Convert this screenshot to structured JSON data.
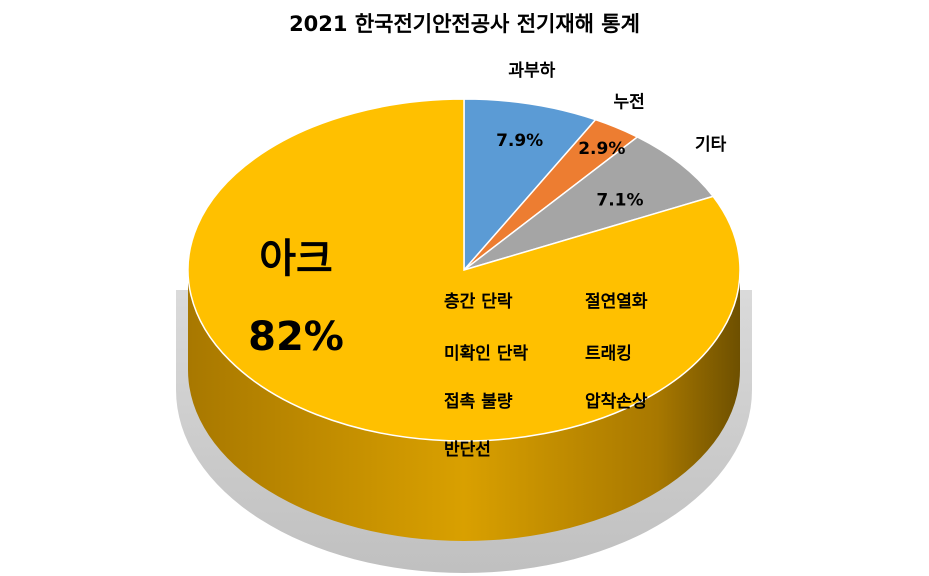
{
  "chart_data": {
    "type": "pie",
    "title": "2021 한국전기안전공사 전기재해 통계",
    "slices": [
      {
        "label": "과부하",
        "value": 7.9,
        "value_label": "7.9%",
        "color": "#5b9bd5"
      },
      {
        "label": "누전",
        "value": 2.9,
        "value_label": "2.9%",
        "color": "#ed7d31"
      },
      {
        "label": "기타",
        "value": 7.1,
        "value_label": "7.1%",
        "color": "#a5a5a5"
      },
      {
        "label": "아크",
        "value": 82,
        "value_label": "82%",
        "color": "#ffc000"
      }
    ],
    "arc_causes": [
      "층간 단락",
      "절연열화",
      "미확인 단락",
      "트래킹",
      "접촉 불량",
      "압착손상",
      "반단선"
    ],
    "style": "3d"
  }
}
